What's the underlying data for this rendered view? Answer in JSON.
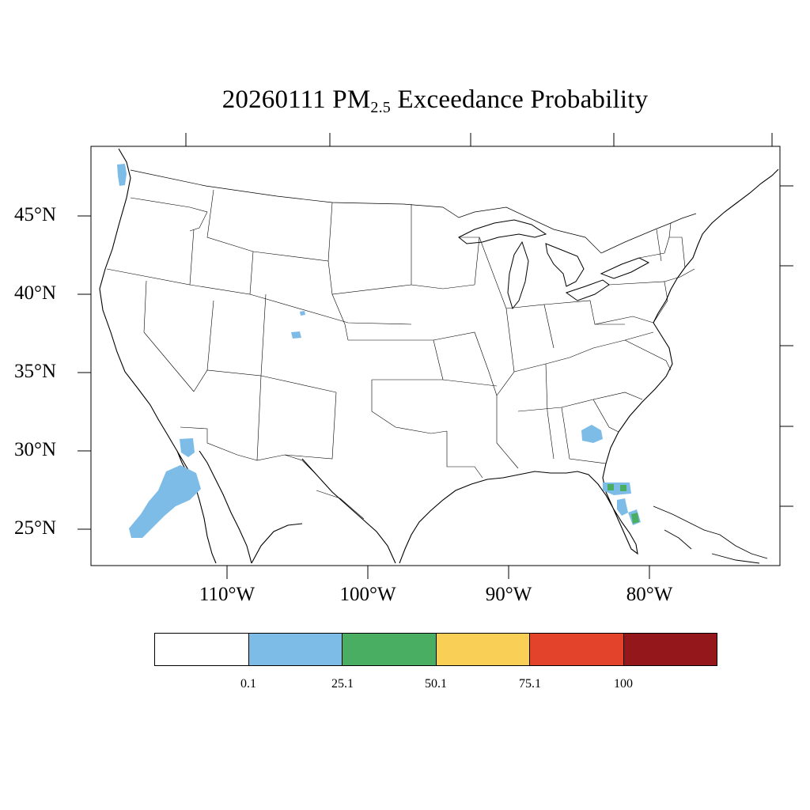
{
  "title": {
    "prefix": "20260111 PM",
    "subscript": "2.5",
    "suffix": " Exceedance Probability"
  },
  "map": {
    "lat_labels": [
      "45°N",
      "40°N",
      "35°N",
      "30°N",
      "25°N"
    ],
    "lon_labels": [
      "110°W",
      "100°W",
      "90°W",
      "80°W"
    ]
  },
  "legend": {
    "colors": [
      "#ffffff",
      "#7ebce8",
      "#4aae62",
      "#f9cf55",
      "#e2432a",
      "#94171b"
    ],
    "tick_labels": [
      "0.1",
      "25.1",
      "50.1",
      "75.1",
      "100"
    ]
  },
  "probability_areas": [
    {
      "region": "Washington coast",
      "level": "0.1-25.1"
    },
    {
      "region": "Colorado",
      "level": "0.1-25.1"
    },
    {
      "region": "Baja California / Gulf of California",
      "level": "0.1-25.1"
    },
    {
      "region": "Georgia",
      "level": "0.1-25.1"
    },
    {
      "region": "Florida",
      "level": "25.1-50.1"
    }
  ]
}
